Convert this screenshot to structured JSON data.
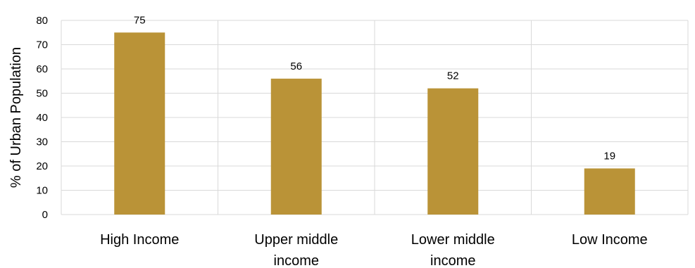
{
  "chart_data": {
    "type": "bar",
    "categories": [
      "High Income",
      "Upper middle income",
      "Lower middle income",
      "Low Income"
    ],
    "category_lines": [
      [
        "High Income"
      ],
      [
        "Upper middle",
        "income"
      ],
      [
        "Lower middle",
        "income"
      ],
      [
        "Low Income"
      ]
    ],
    "values": [
      75,
      56,
      52,
      19
    ],
    "data_labels": [
      "75",
      "56",
      "52",
      "19"
    ],
    "title": "",
    "xlabel": "",
    "ylabel": "% of Urban Population",
    "ylim": [
      0,
      80
    ],
    "yticks": [
      0,
      10,
      20,
      30,
      40,
      50,
      60,
      70,
      80
    ],
    "grid": true,
    "bar_color": "#BA9337",
    "legend": "none"
  }
}
